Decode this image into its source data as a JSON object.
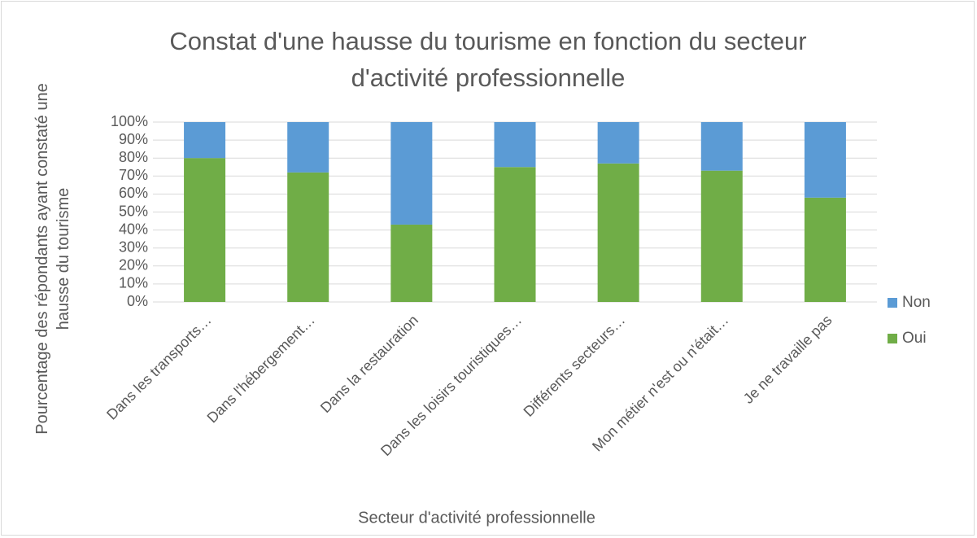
{
  "chart_data": {
    "type": "stacked_bar",
    "title": "Constat d'une hausse du tourisme en fonction du secteur d'activité professionnelle",
    "y_axis_label": "Pourcentage des répondants ayant constaté une hausse du tourisme",
    "x_axis_label": "Secteur d'activité professionnelle",
    "categories": [
      "Dans les transports…",
      "Dans l'hébergement…",
      "Dans la restauration",
      "Dans les loisirs touristiques…",
      "Différents secteurs…",
      "Mon métier n'est ou n'était…",
      "Je ne travaille pas"
    ],
    "series": [
      {
        "name": "Oui",
        "color": "#70ad47",
        "values": [
          80,
          72,
          43,
          75,
          77,
          73,
          58
        ]
      },
      {
        "name": "Non",
        "color": "#5b9bd5",
        "values": [
          20,
          28,
          57,
          25,
          23,
          27,
          42
        ]
      }
    ],
    "ylim": [
      0,
      100
    ],
    "yticks": [
      {
        "value": 0,
        "label": "0%"
      },
      {
        "value": 10,
        "label": "10%"
      },
      {
        "value": 20,
        "label": "20%"
      },
      {
        "value": 30,
        "label": "30%"
      },
      {
        "value": 40,
        "label": "40%"
      },
      {
        "value": 50,
        "label": "50%"
      },
      {
        "value": 60,
        "label": "60%"
      },
      {
        "value": 70,
        "label": "70%"
      },
      {
        "value": 80,
        "label": "80%"
      },
      {
        "value": 90,
        "label": "90%"
      },
      {
        "value": 100,
        "label": "100%"
      }
    ],
    "grid": true,
    "legend": "right"
  }
}
